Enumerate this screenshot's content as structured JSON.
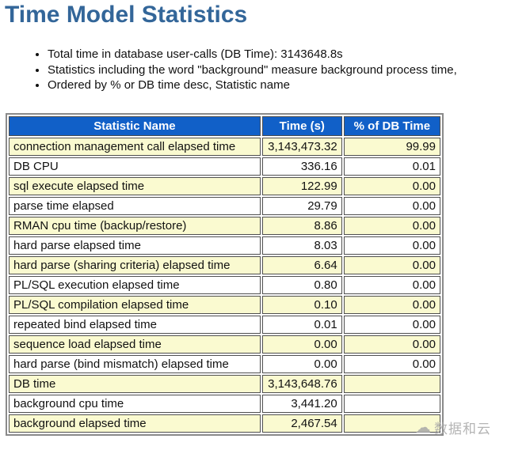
{
  "page": {
    "title": "Time Model Statistics",
    "bullets": [
      "Total time in database user-calls (DB Time): 3143648.8s",
      "Statistics including the word \"background\" measure background process time,",
      "Ordered by % or DB time desc, Statistic name"
    ]
  },
  "table": {
    "columns": [
      "Statistic Name",
      "Time (s)",
      "% of DB Time"
    ],
    "rows": [
      {
        "name": "connection management call elapsed time",
        "time": "3,143,473.32",
        "pct": "99.99"
      },
      {
        "name": "DB CPU",
        "time": "336.16",
        "pct": "0.01"
      },
      {
        "name": "sql execute elapsed time",
        "time": "122.99",
        "pct": "0.00"
      },
      {
        "name": "parse time elapsed",
        "time": "29.79",
        "pct": "0.00"
      },
      {
        "name": "RMAN cpu time (backup/restore)",
        "time": "8.86",
        "pct": "0.00"
      },
      {
        "name": "hard parse elapsed time",
        "time": "8.03",
        "pct": "0.00"
      },
      {
        "name": "hard parse (sharing criteria) elapsed time",
        "time": "6.64",
        "pct": "0.00"
      },
      {
        "name": "PL/SQL execution elapsed time",
        "time": "0.80",
        "pct": "0.00"
      },
      {
        "name": "PL/SQL compilation elapsed time",
        "time": "0.10",
        "pct": "0.00"
      },
      {
        "name": "repeated bind elapsed time",
        "time": "0.01",
        "pct": "0.00"
      },
      {
        "name": "sequence load elapsed time",
        "time": "0.00",
        "pct": "0.00"
      },
      {
        "name": "hard parse (bind mismatch) elapsed time",
        "time": "0.00",
        "pct": "0.00"
      },
      {
        "name": "DB time",
        "time": "3,143,648.76",
        "pct": ""
      },
      {
        "name": "background cpu time",
        "time": "3,441.20",
        "pct": ""
      },
      {
        "name": "background elapsed time",
        "time": "2,467.54",
        "pct": ""
      }
    ]
  },
  "watermark": {
    "icon": "cloud-icon",
    "text": "数据和云"
  },
  "colors": {
    "title": "#336699",
    "header_bg": "#1160c8",
    "header_fg": "#ffffff",
    "row_alt_bg": "#fafad0",
    "cell_border": "#4f4f4f",
    "outer_border": "#8a8a8a",
    "watermark": "#a8a8a8"
  }
}
